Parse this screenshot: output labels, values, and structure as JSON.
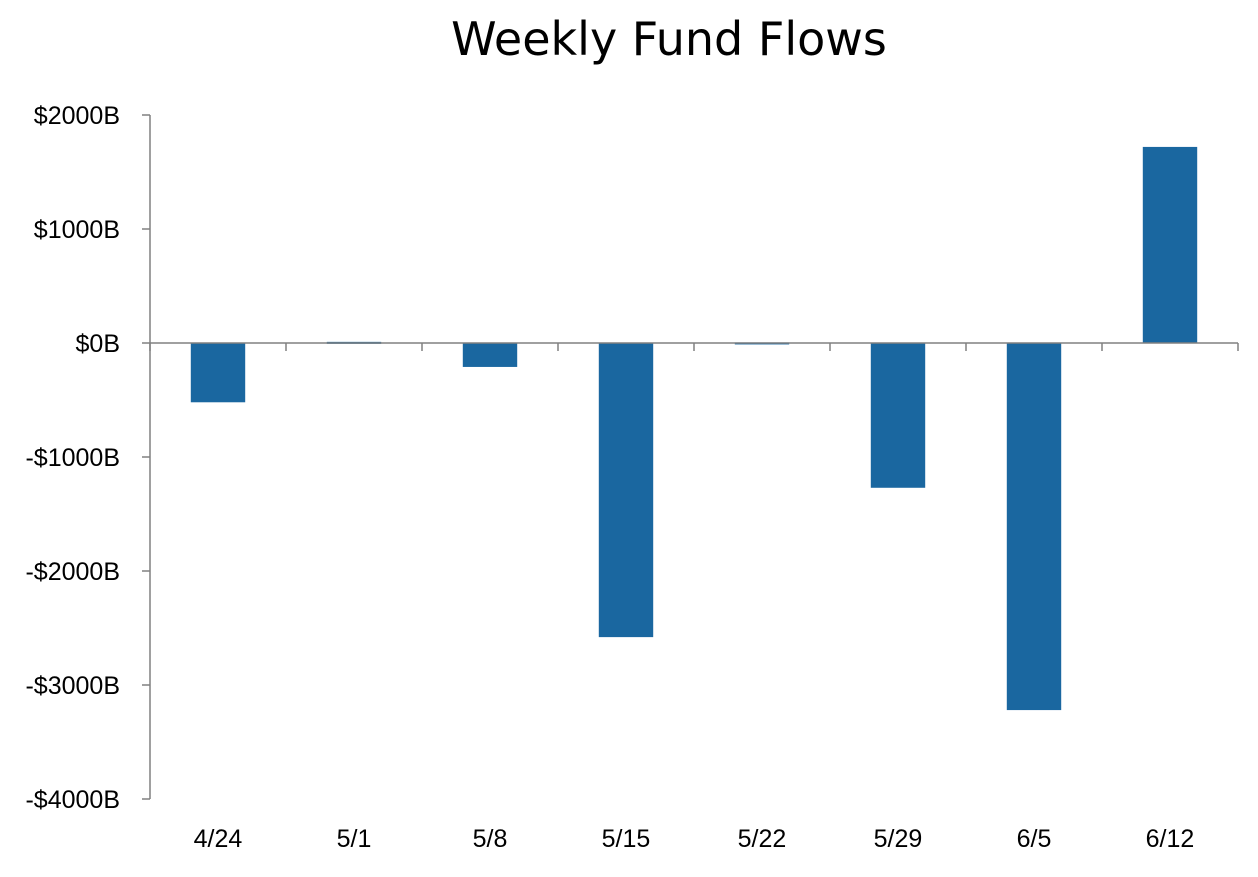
{
  "chart_data": {
    "type": "bar",
    "title": "Weekly Fund Flows",
    "xlabel": "",
    "ylabel": "",
    "categories": [
      "4/24",
      "5/1",
      "5/8",
      "5/15",
      "5/22",
      "5/29",
      "6/5",
      "6/12"
    ],
    "series": [
      {
        "values": [
          -520,
          10,
          -210,
          -2580,
          5,
          -1270,
          -3220,
          1720
        ]
      }
    ],
    "ylim": [
      -4000,
      2000
    ],
    "yticks": [
      2000,
      1000,
      0,
      -1000,
      -2000,
      -3000,
      -4000
    ],
    "ytick_labels": [
      "$2000B",
      "$1000B",
      "$0B",
      "-$1000B",
      "-$2000B",
      "-$3000B",
      "-$4000B"
    ],
    "grid": false,
    "legend": "none",
    "colors": {
      "bar": "#1a67a0",
      "axis": "#808080",
      "text": "#000000"
    }
  }
}
